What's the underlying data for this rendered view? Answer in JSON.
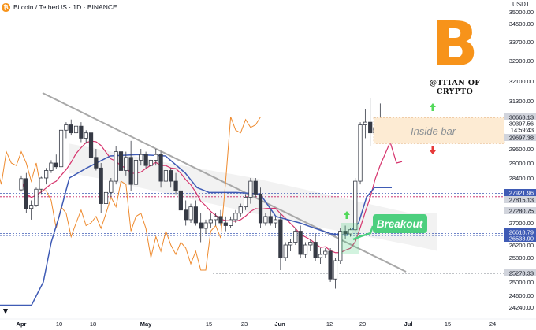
{
  "header": {
    "symbol_title": "Bitcoin / TetherUS · 1D · BINANCE",
    "logo_glyph": "₿"
  },
  "currency": "USDT",
  "watermark": {
    "glyph": "B",
    "handle": "@TITAN OF CRYPTO"
  },
  "annotations": {
    "inside_bar": "Inside bar",
    "breakout": "Breakout"
  },
  "colors": {
    "candle": "#363a45",
    "price_line_orange": "#ee8a2e",
    "ma_pink": "#d6336c",
    "ma_blue": "#3f5bb5",
    "cloud": "#e8e8e8",
    "breakout_box": "#4ccf7e",
    "inside_bar_box": "#fdebd3",
    "arrow_up": "#52d95a",
    "arrow_down": "#e63939"
  },
  "chart_data": {
    "type": "candlestick",
    "y_axis": {
      "ticks": [
        35000.0,
        34500.0,
        33700.0,
        32900.0,
        32100.0,
        31300.0,
        29500.0,
        29000.0,
        28400.0,
        27000.0,
        26200.0,
        25800.0,
        25400.0,
        25000.0,
        24600.0,
        24240.0
      ],
      "tick_labels": [
        "35000.00",
        "34500.00",
        "33700.00",
        "32900.00",
        "32100.00",
        "31300.00",
        "29500.00",
        "29000.00",
        "28400.00",
        "27000.00",
        "26200.00",
        "25800.00",
        "25400.00",
        "25000.00",
        "24600.00",
        "24240.00"
      ]
    },
    "x_axis": {
      "tick_labels": [
        "Apr",
        "10",
        "18",
        "May",
        "15",
        "23",
        "Jun",
        "12",
        "20",
        "Jul",
        "15",
        "24"
      ]
    },
    "price_labels": [
      {
        "value": "30668.13",
        "style": "gray"
      },
      {
        "value": "30397.56",
        "style": "white"
      },
      {
        "value": "14:59:43",
        "style": "white"
      },
      {
        "value": "29697.38",
        "style": "gray"
      },
      {
        "value": "27921.96",
        "style": "blue"
      },
      {
        "value": "27815.13",
        "style": "gray"
      },
      {
        "value": "27280.75",
        "style": "gray"
      },
      {
        "value": "26618.79",
        "style": "blue"
      },
      {
        "value": "26538.90",
        "style": "blue"
      },
      {
        "value": "25278.33",
        "style": "gray"
      }
    ],
    "levels": {
      "inside_bar_high": 30668.13,
      "inside_bar_low": 29697.38,
      "resistance": 27921.96,
      "support_1": 26618.79,
      "support_2": 26538.9,
      "bottom": 25278.33
    },
    "candles": [
      [
        28030,
        28500,
        27980,
        28380
      ],
      [
        28380,
        28600,
        27300,
        27450
      ],
      [
        27450,
        27700,
        27100,
        27550
      ],
      [
        27550,
        28100,
        27500,
        28050
      ],
      [
        28050,
        28450,
        27900,
        28400
      ],
      [
        28400,
        28800,
        28200,
        28700
      ],
      [
        28700,
        29100,
        28600,
        29000
      ],
      [
        29000,
        29300,
        28750,
        28850
      ],
      [
        28850,
        30300,
        28800,
        30200
      ],
      [
        30200,
        30500,
        29900,
        30400
      ],
      [
        30400,
        30600,
        30000,
        30100
      ],
      [
        30100,
        30450,
        29950,
        30350
      ],
      [
        30350,
        30500,
        29750,
        29900
      ],
      [
        29900,
        30200,
        29700,
        30100
      ],
      [
        30100,
        30250,
        29100,
        29200
      ],
      [
        29200,
        29500,
        28700,
        28800
      ],
      [
        28800,
        29000,
        27300,
        27600
      ],
      [
        27600,
        28100,
        27400,
        27950
      ],
      [
        27950,
        28400,
        27800,
        28300
      ],
      [
        28300,
        29600,
        28200,
        29400
      ],
      [
        29400,
        29700,
        28600,
        28700
      ],
      [
        28700,
        29400,
        28500,
        29200
      ],
      [
        29200,
        29800,
        28000,
        28200
      ],
      [
        28200,
        29300,
        28100,
        29100
      ],
      [
        29100,
        29500,
        28900,
        29300
      ],
      [
        29300,
        29400,
        28800,
        28900
      ],
      [
        28900,
        29200,
        28700,
        29100
      ],
      [
        29100,
        29500,
        28900,
        29300
      ],
      [
        29300,
        29400,
        28100,
        28300
      ],
      [
        28300,
        28900,
        28200,
        28700
      ],
      [
        28700,
        28800,
        28100,
        28300
      ],
      [
        28300,
        28600,
        27900,
        28000
      ],
      [
        28000,
        28200,
        27200,
        27400
      ],
      [
        27400,
        27700,
        26900,
        27100
      ],
      [
        27100,
        27600,
        27000,
        27500
      ],
      [
        27500,
        27700,
        26900,
        27000
      ],
      [
        27000,
        27300,
        26300,
        26800
      ],
      [
        26800,
        27100,
        26600,
        27000
      ],
      [
        27000,
        27300,
        26800,
        27100
      ],
      [
        27100,
        27300,
        26900,
        27200
      ],
      [
        27200,
        27400,
        26900,
        27000
      ],
      [
        27000,
        27200,
        26700,
        26900
      ],
      [
        26900,
        27200,
        26800,
        27100
      ],
      [
        27100,
        27400,
        27000,
        27300
      ],
      [
        27300,
        27600,
        27200,
        27500
      ],
      [
        27500,
        27900,
        27400,
        27800
      ],
      [
        27800,
        28400,
        27600,
        28300
      ],
      [
        28300,
        28400,
        27800,
        27900
      ],
      [
        27900,
        28100,
        26800,
        27000
      ],
      [
        27000,
        27300,
        26900,
        27200
      ],
      [
        27200,
        27400,
        26900,
        27000
      ],
      [
        27000,
        27200,
        26800,
        27100
      ],
      [
        27100,
        27300,
        25400,
        25800
      ],
      [
        25800,
        26300,
        25700,
        26200
      ],
      [
        26200,
        26400,
        26000,
        26300
      ],
      [
        26300,
        26800,
        26200,
        26700
      ],
      [
        26700,
        26900,
        25800,
        25900
      ],
      [
        25900,
        26300,
        25800,
        26200
      ],
      [
        26200,
        26400,
        26000,
        26300
      ],
      [
        26300,
        26600,
        25700,
        25800
      ],
      [
        25800,
        26100,
        25600,
        25900
      ],
      [
        25900,
        26100,
        25800,
        26000
      ],
      [
        26000,
        26100,
        25000,
        25100
      ],
      [
        25100,
        25800,
        24800,
        25700
      ],
      [
        25700,
        26800,
        25600,
        26700
      ],
      [
        26700,
        26900,
        26400,
        26600
      ],
      [
        26600,
        26800,
        26500,
        26750
      ],
      [
        26750,
        28400,
        26700,
        28300
      ],
      [
        28300,
        30500,
        28200,
        30400
      ],
      [
        30400,
        31000,
        29900,
        30500
      ],
      [
        30500,
        31400,
        29600,
        30100
      ],
      [
        30100,
        30700,
        29900,
        30300
      ],
      [
        30300,
        31200,
        30200,
        30600
      ],
      [
        30600,
        30650,
        30200,
        30400
      ],
      [
        30400,
        30670,
        29700,
        30398
      ]
    ]
  }
}
